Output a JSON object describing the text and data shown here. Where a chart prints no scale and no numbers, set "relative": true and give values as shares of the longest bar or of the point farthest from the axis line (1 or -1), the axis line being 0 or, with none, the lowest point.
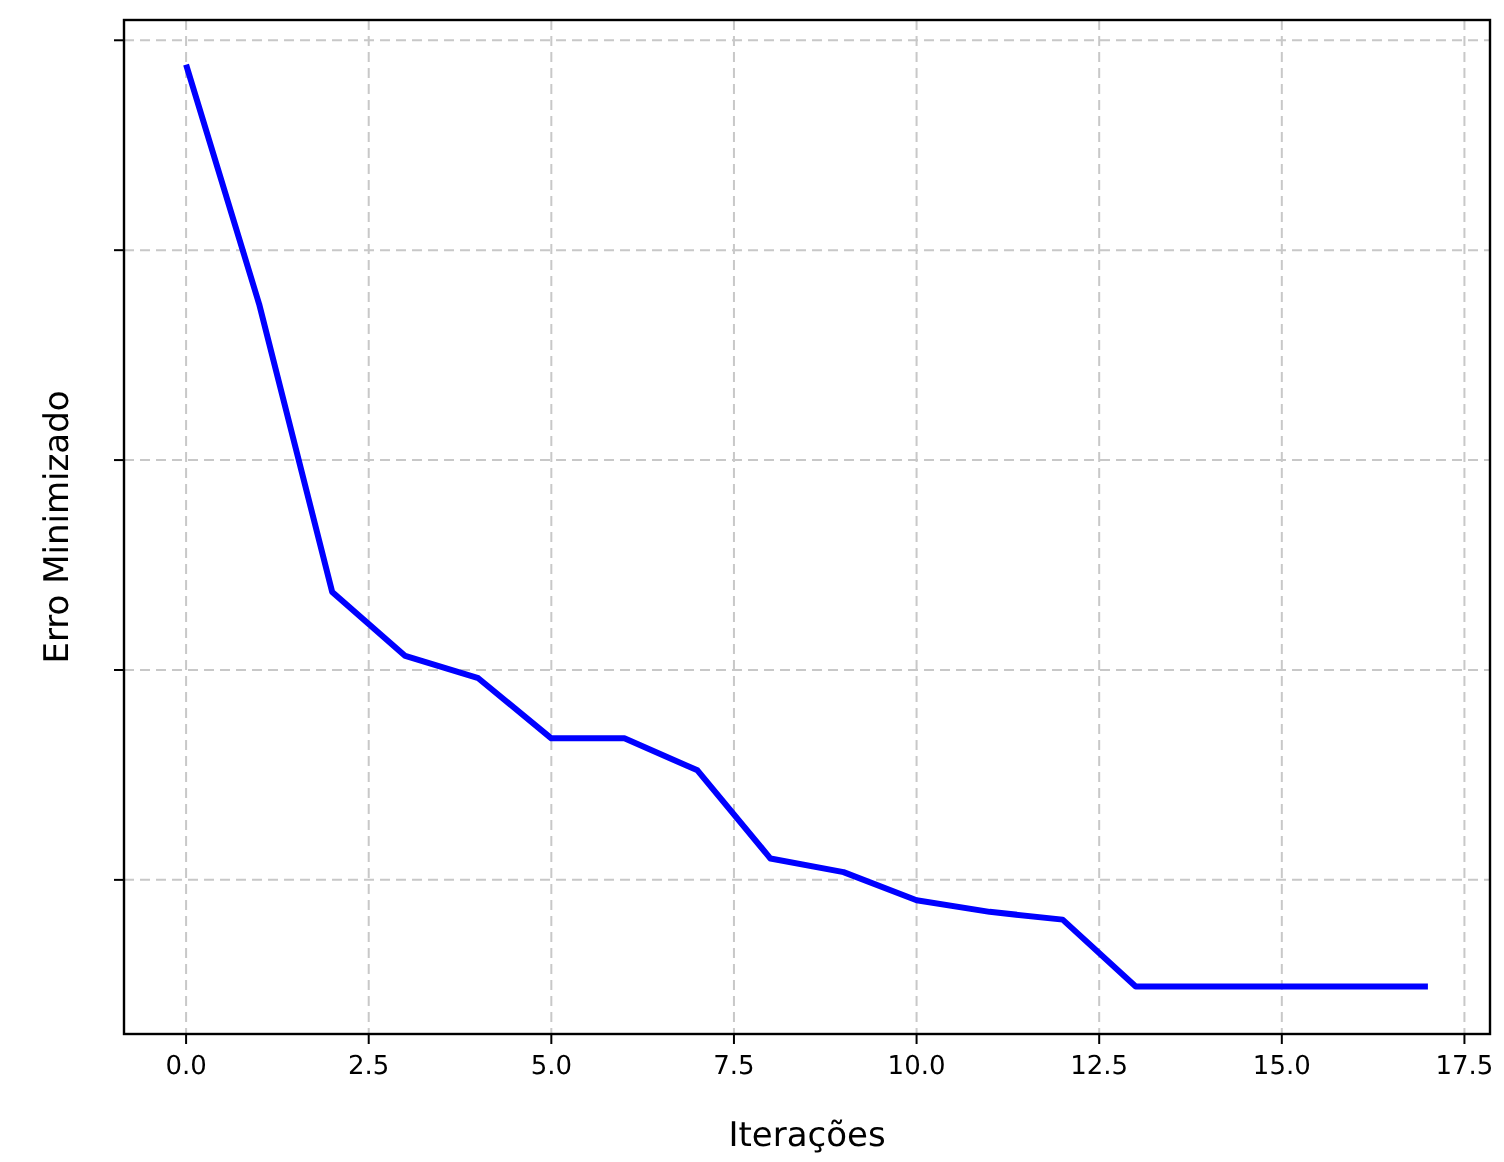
{
  "chart_data": {
    "type": "line",
    "xlabel": "Iterações",
    "ylabel": "Erro Minimizado",
    "relative": true,
    "grid": true,
    "tick_labels": "x",
    "x": [
      0,
      1,
      2,
      3,
      4,
      5,
      6,
      7,
      8,
      9,
      10,
      11,
      12,
      13,
      14,
      15,
      16,
      17
    ],
    "xlim": [
      -0.85,
      17.85
    ],
    "xticks": [
      {
        "value": 0,
        "label": "0.0"
      },
      {
        "value": 2.5,
        "label": "2.5"
      },
      {
        "value": 5,
        "label": "5.0"
      },
      {
        "value": 7.5,
        "label": "7.5"
      },
      {
        "value": 10,
        "label": "10.0"
      },
      {
        "value": 12.5,
        "label": "12.5"
      },
      {
        "value": 15,
        "label": "15.0"
      },
      {
        "value": 17.5,
        "label": "17.5"
      }
    ],
    "series": [
      {
        "color": "#0000ff",
        "values": [
          1,
          0.753,
          0.456,
          0.39,
          0.367,
          0.305,
          0.305,
          0.272,
          0.181,
          0.167,
          0.138,
          0.126,
          0.118,
          0.049,
          0.049,
          0.049,
          0.049,
          0.049
        ]
      }
    ]
  }
}
